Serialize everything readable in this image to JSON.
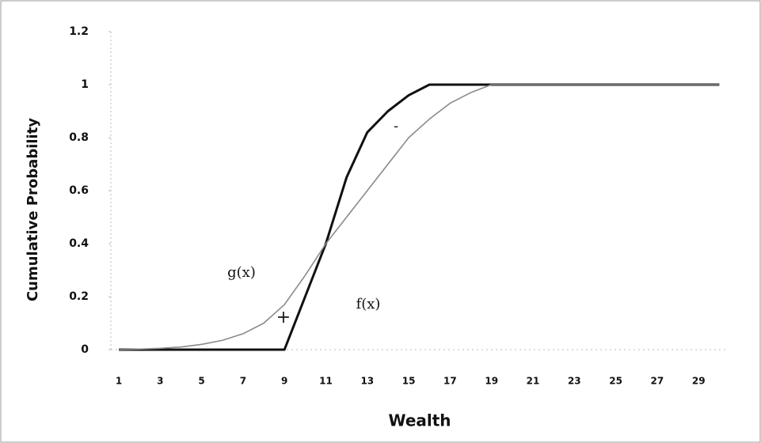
{
  "chart_data": {
    "type": "line",
    "y_label": "Cumulative Probability",
    "x_label": "Wealth",
    "categories": [
      1,
      null,
      3,
      null,
      5,
      null,
      7,
      null,
      9,
      null,
      11,
      null,
      13,
      null,
      15,
      null,
      17,
      null,
      19,
      null,
      21,
      null,
      23,
      null,
      25,
      null,
      27,
      null,
      29,
      null
    ],
    "series": [
      {
        "name": "f(x)",
        "color": "#111111",
        "width": 3,
        "values": [
          0,
          0,
          0,
          0,
          0,
          0,
          0,
          0,
          0,
          0.2,
          0.4,
          0.65,
          0.82,
          0.9,
          0.96,
          1,
          1,
          1,
          1,
          1,
          1,
          1,
          1,
          1,
          1,
          1,
          1,
          1,
          1,
          1
        ]
      },
      {
        "name": "g(x)",
        "color": "#8a8a8a",
        "width": 1.6,
        "values": [
          0,
          0.002,
          0.005,
          0.01,
          0.02,
          0.035,
          0.06,
          0.1,
          0.17,
          0.28,
          0.4,
          0.5,
          0.6,
          0.7,
          0.8,
          0.87,
          0.93,
          0.97,
          1,
          1,
          1,
          1,
          1,
          1,
          1,
          1,
          1,
          1,
          1,
          1
        ]
      }
    ],
    "annotations": [
      "g(x)",
      "f(x)",
      "+",
      "-"
    ],
    "ylim": [
      0,
      1.2
    ],
    "yticks": [
      0,
      0.2,
      0.4,
      0.6,
      0.8,
      1,
      1.2
    ]
  }
}
